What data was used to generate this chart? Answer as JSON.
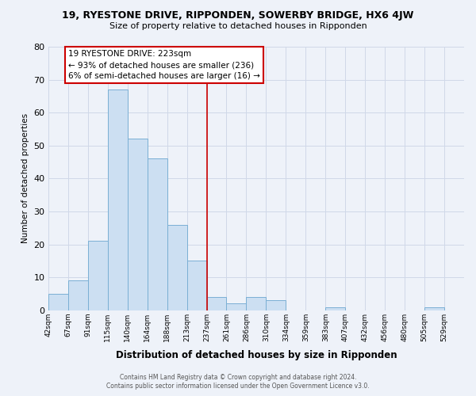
{
  "title": "19, RYESTONE DRIVE, RIPPONDEN, SOWERBY BRIDGE, HX6 4JW",
  "subtitle": "Size of property relative to detached houses in Ripponden",
  "xlabel": "Distribution of detached houses by size in Ripponden",
  "ylabel": "Number of detached properties",
  "bar_labels": [
    "42sqm",
    "67sqm",
    "91sqm",
    "115sqm",
    "140sqm",
    "164sqm",
    "188sqm",
    "213sqm",
    "237sqm",
    "261sqm",
    "286sqm",
    "310sqm",
    "334sqm",
    "359sqm",
    "383sqm",
    "407sqm",
    "432sqm",
    "456sqm",
    "480sqm",
    "505sqm",
    "529sqm"
  ],
  "bar_values": [
    5,
    9,
    21,
    67,
    52,
    46,
    26,
    15,
    4,
    2,
    4,
    3,
    0,
    0,
    1,
    0,
    0,
    0,
    0,
    1,
    0
  ],
  "bar_color": "#ccdff2",
  "bar_edge_color": "#7aafd4",
  "ylim": [
    0,
    80
  ],
  "yticks": [
    0,
    10,
    20,
    30,
    40,
    50,
    60,
    70,
    80
  ],
  "property_bar_index": 7,
  "annotation_title": "19 RYESTONE DRIVE: 223sqm",
  "annotation_line1": "← 93% of detached houses are smaller (236)",
  "annotation_line2": "6% of semi-detached houses are larger (16) →",
  "annotation_box_color": "#ffffff",
  "annotation_box_edge": "#cc0000",
  "footer1": "Contains HM Land Registry data © Crown copyright and database right 2024.",
  "footer2": "Contains public sector information licensed under the Open Government Licence v3.0.",
  "bg_color": "#eef2f9",
  "grid_color": "#d0d8e8",
  "n_bars": 21
}
